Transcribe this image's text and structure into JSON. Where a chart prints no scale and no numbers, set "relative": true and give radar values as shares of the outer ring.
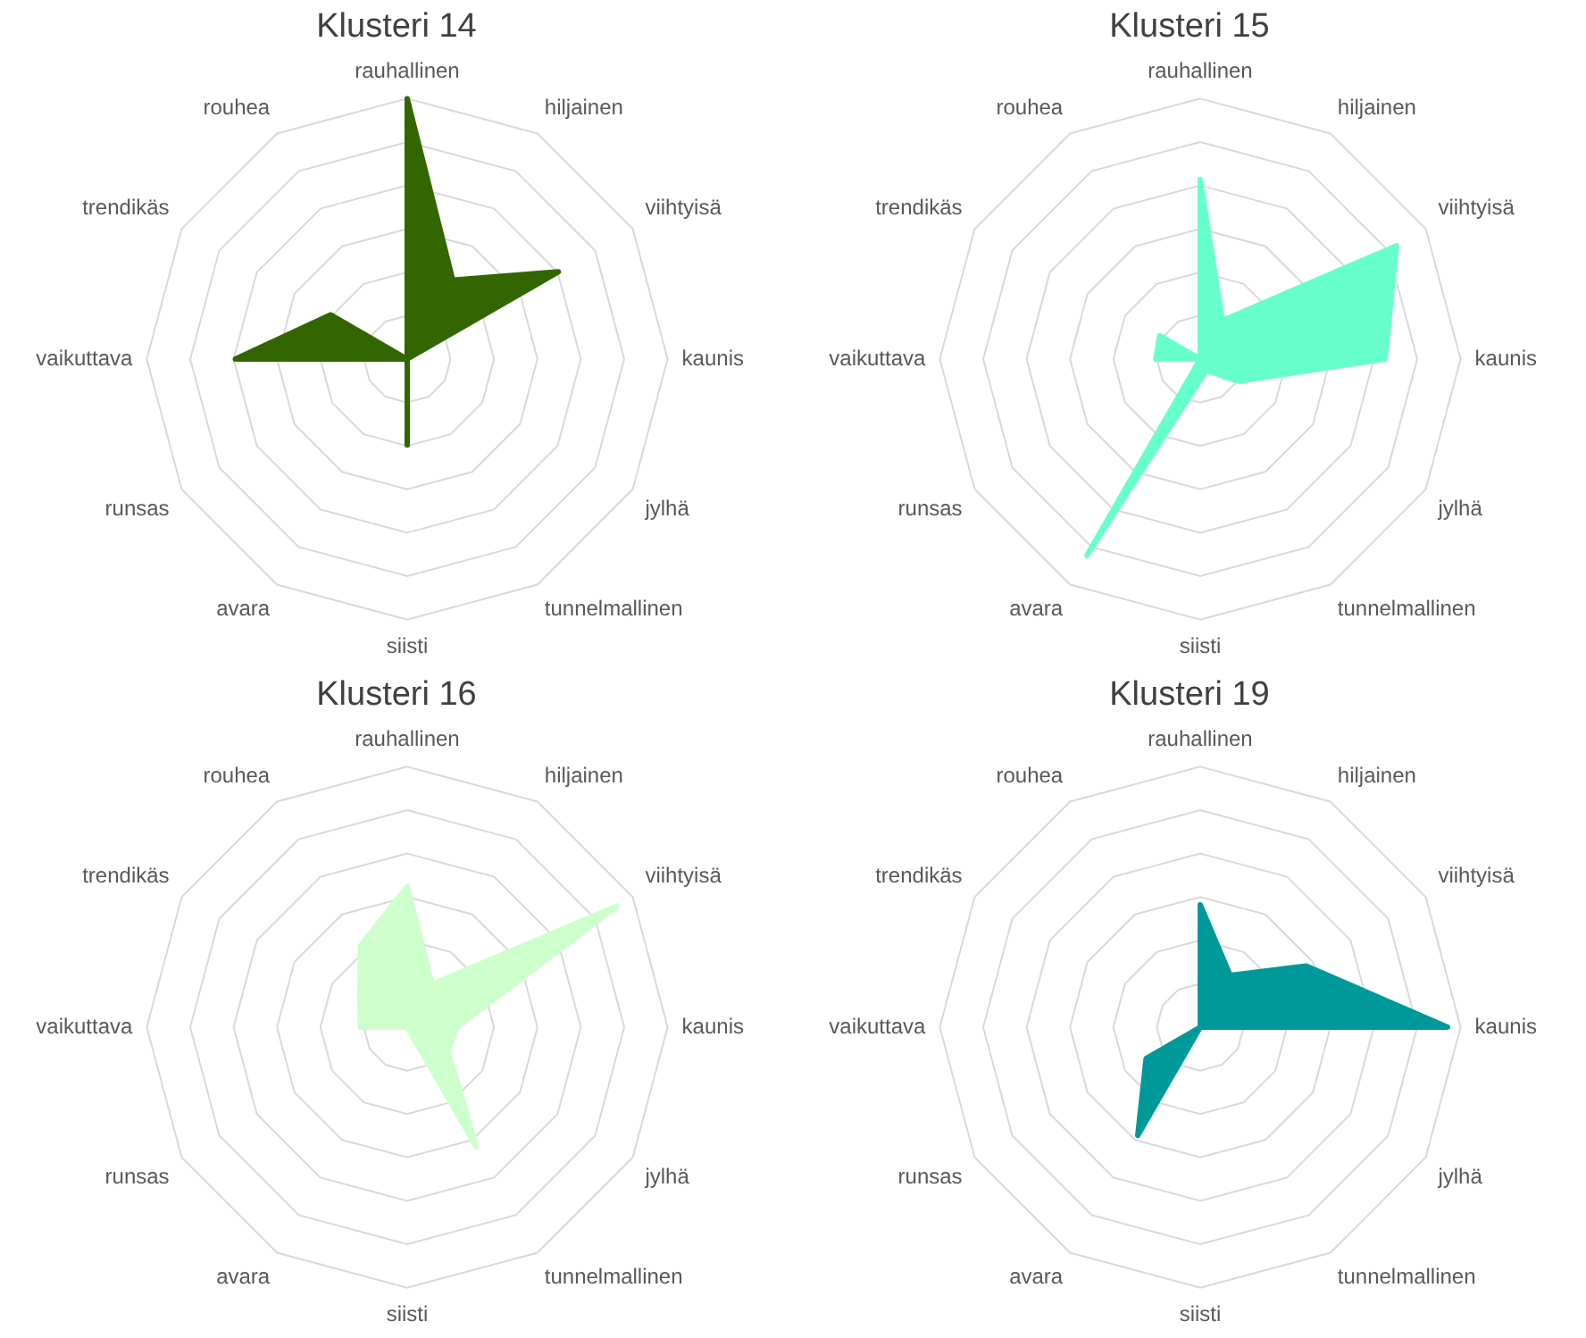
{
  "chart_data": [
    {
      "type": "radar",
      "title": "Klusteri 14",
      "categories": [
        "rauhallinen",
        "hiljainen",
        "viihtyisä",
        "kaunis",
        "jylhä",
        "tunnelmallinen",
        "siisti",
        "avara",
        "runsas",
        "vaikuttava",
        "trendikäs",
        "rouhea"
      ],
      "relative": true,
      "grid": true,
      "series": [
        {
          "color": "#336600",
          "values": [
            1.0,
            0.35,
            0.67,
            0,
            0,
            0,
            0.33,
            0,
            0,
            0.66,
            0.34,
            0
          ]
        }
      ]
    },
    {
      "type": "radar",
      "title": "Klusteri 15",
      "categories": [
        "rauhallinen",
        "hiljainen",
        "viihtyisä",
        "kaunis",
        "jylhä",
        "tunnelmallinen",
        "siisti",
        "avara",
        "runsas",
        "vaikuttava",
        "trendikäs",
        "rouhea"
      ],
      "relative": true,
      "grid": true,
      "series": [
        {
          "color": "#66ffcc",
          "values": [
            0.69,
            0.17,
            0.87,
            0.71,
            0.17,
            0.05,
            0.08,
            0.87,
            0,
            0.17,
            0.18,
            0
          ]
        }
      ]
    },
    {
      "type": "radar",
      "title": "Klusteri 16",
      "categories": [
        "rauhallinen",
        "hiljainen",
        "viihtyisä",
        "kaunis",
        "jylhä",
        "tunnelmallinen",
        "siisti",
        "avara",
        "runsas",
        "vaikuttava",
        "trendikäs",
        "rouhea"
      ],
      "relative": true,
      "grid": true,
      "series": [
        {
          "color": "#ccffcc",
          "values": [
            0.54,
            0.19,
            0.93,
            0.19,
            0.18,
            0.53,
            0,
            0,
            0,
            0.18,
            0.21,
            0.36
          ]
        }
      ]
    },
    {
      "type": "radar",
      "title": "Klusteri 19",
      "categories": [
        "rauhallinen",
        "hiljainen",
        "viihtyisä",
        "kaunis",
        "jylhä",
        "tunnelmallinen",
        "siisti",
        "avara",
        "runsas",
        "vaikuttava",
        "trendikäs",
        "rouhea"
      ],
      "relative": true,
      "grid": true,
      "series": [
        {
          "color": "#009999",
          "values": [
            0.47,
            0.23,
            0.47,
            0.95,
            0,
            0,
            0,
            0.48,
            0.24,
            0,
            0,
            0
          ]
        }
      ]
    }
  ]
}
